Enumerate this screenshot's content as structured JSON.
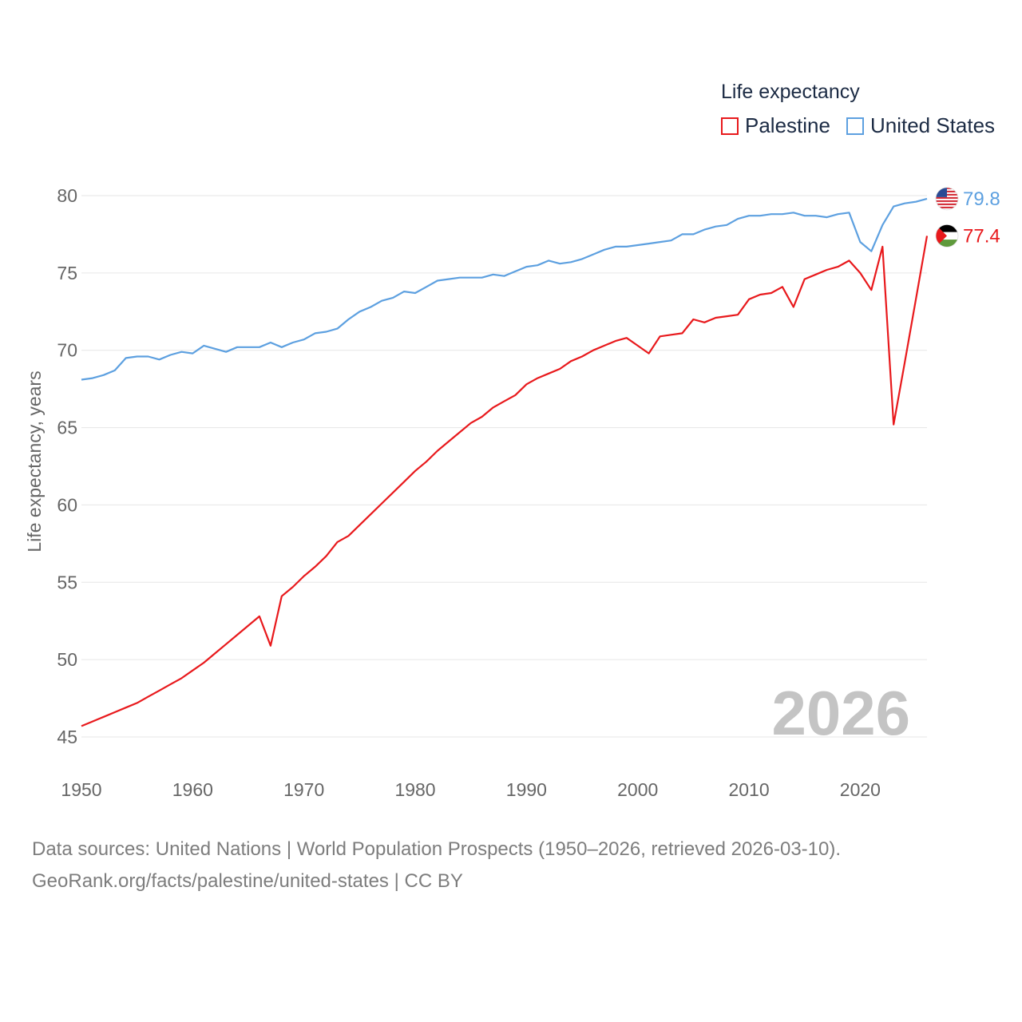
{
  "chart_data": {
    "type": "line",
    "ylabel": "Life expectancy, years",
    "xlabel": "",
    "legend_title": "Life expectancy",
    "legend_placement": "top-right",
    "grid": true,
    "xlim": [
      1950,
      2026
    ],
    "ylim": [
      45,
      80
    ],
    "x_ticks": [
      1950,
      1960,
      1970,
      1980,
      1990,
      2000,
      2010,
      2020
    ],
    "y_ticks": [
      45,
      50,
      55,
      60,
      65,
      70,
      75,
      80
    ],
    "year_watermark": "2026",
    "x": [
      1950,
      1951,
      1952,
      1953,
      1954,
      1955,
      1956,
      1957,
      1958,
      1959,
      1960,
      1961,
      1962,
      1963,
      1964,
      1965,
      1966,
      1967,
      1968,
      1969,
      1970,
      1971,
      1972,
      1973,
      1974,
      1975,
      1976,
      1977,
      1978,
      1979,
      1980,
      1981,
      1982,
      1983,
      1984,
      1985,
      1986,
      1987,
      1988,
      1989,
      1990,
      1991,
      1992,
      1993,
      1994,
      1995,
      1996,
      1997,
      1998,
      1999,
      2000,
      2001,
      2002,
      2003,
      2004,
      2005,
      2006,
      2007,
      2008,
      2009,
      2010,
      2011,
      2012,
      2013,
      2014,
      2015,
      2016,
      2017,
      2018,
      2019,
      2020,
      2021,
      2022,
      2023,
      2024,
      2025,
      2026
    ],
    "series": [
      {
        "name": "Palestine",
        "color": "#e8191c",
        "end_label": "77.4",
        "values": [
          45.7,
          46.0,
          46.3,
          46.6,
          46.9,
          47.2,
          47.6,
          48.0,
          48.4,
          48.8,
          49.3,
          49.8,
          50.4,
          51.0,
          51.6,
          52.2,
          52.8,
          50.9,
          54.1,
          54.7,
          55.4,
          56.0,
          56.7,
          57.6,
          58.0,
          58.7,
          59.4,
          60.1,
          60.8,
          61.5,
          62.2,
          62.8,
          63.5,
          64.1,
          64.7,
          65.3,
          65.7,
          66.3,
          66.7,
          67.1,
          67.8,
          68.2,
          68.5,
          68.8,
          69.3,
          69.6,
          70.0,
          70.3,
          70.6,
          70.8,
          70.3,
          69.8,
          70.9,
          71.0,
          71.1,
          72.0,
          71.8,
          72.1,
          72.2,
          72.3,
          73.3,
          73.6,
          73.7,
          74.1,
          72.8,
          74.6,
          74.9,
          75.2,
          75.4,
          75.8,
          75.0,
          73.9,
          76.7,
          65.2,
          69.2,
          73.3,
          77.4
        ]
      },
      {
        "name": "United States",
        "color": "#5da0e0",
        "end_label": "79.8",
        "values": [
          68.1,
          68.2,
          68.4,
          68.7,
          69.5,
          69.6,
          69.6,
          69.4,
          69.7,
          69.9,
          69.8,
          70.3,
          70.1,
          69.9,
          70.2,
          70.2,
          70.2,
          70.5,
          70.2,
          70.5,
          70.7,
          71.1,
          71.2,
          71.4,
          72.0,
          72.5,
          72.8,
          73.2,
          73.4,
          73.8,
          73.7,
          74.1,
          74.5,
          74.6,
          74.7,
          74.7,
          74.7,
          74.9,
          74.8,
          75.1,
          75.4,
          75.5,
          75.8,
          75.6,
          75.7,
          75.9,
          76.2,
          76.5,
          76.7,
          76.7,
          76.8,
          76.9,
          77.0,
          77.1,
          77.5,
          77.5,
          77.8,
          78.0,
          78.1,
          78.5,
          78.7,
          78.7,
          78.8,
          78.8,
          78.9,
          78.7,
          78.7,
          78.6,
          78.8,
          78.9,
          77.0,
          76.4,
          78.1,
          79.3,
          79.5,
          79.6,
          79.8
        ]
      }
    ]
  },
  "footer": {
    "line1": "Data sources: United Nations | World Population Prospects (1950–2026, retrieved 2026-03-10).",
    "line2": "GeoRank.org/facts/palestine/united-states | CC BY"
  }
}
